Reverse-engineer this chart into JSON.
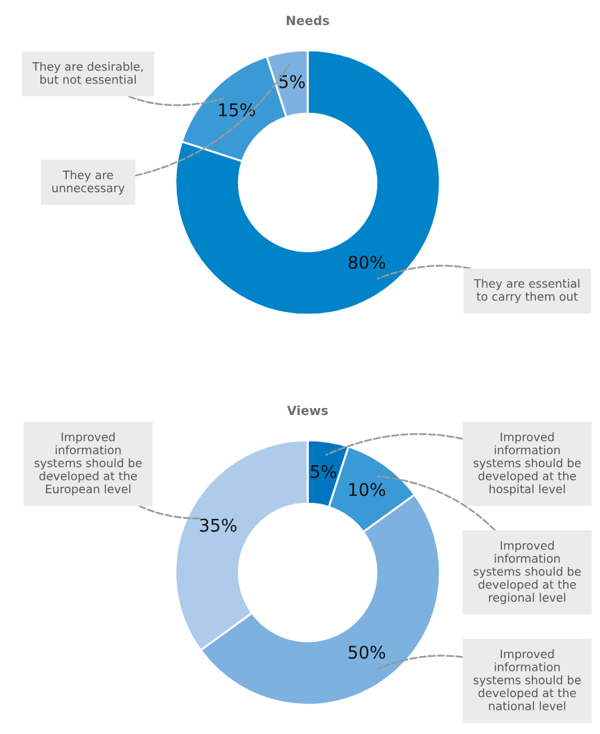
{
  "chart_data": [
    {
      "type": "donut",
      "title": "Needs",
      "categories": [
        "They are essential\nto carry them out",
        "They are desirable,\nbut not essential",
        "They are\nunnecessary"
      ],
      "values": [
        80,
        15,
        5
      ],
      "colors": [
        "#0083c8",
        "#3a9ad6",
        "#7db1e0"
      ],
      "value_labels": [
        "80%",
        "15%",
        "5%"
      ]
    },
    {
      "type": "donut",
      "title": "Views",
      "categories": [
        "Improved\ninformation\nsystems should be\ndeveloped at the\nhospital level",
        "Improved\ninformation\nsystems should be\ndeveloped at the\nregional level",
        "Improved\ninformation\nsystems should be\ndeveloped at the\nnational level",
        "Improved\ninformation\nsystems should be\ndeveloped at the\nEuropean level"
      ],
      "values": [
        5,
        10,
        50,
        35
      ],
      "colors": [
        "#0075bf",
        "#3a9ad6",
        "#7db1e0",
        "#aecbeb"
      ],
      "value_labels": [
        "5%",
        "10%",
        "50%",
        "35%"
      ]
    }
  ]
}
